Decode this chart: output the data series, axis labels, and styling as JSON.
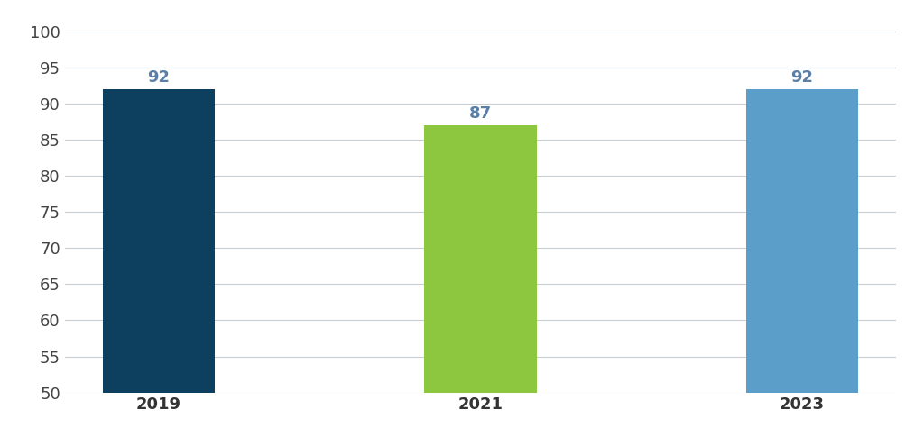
{
  "categories": [
    "2019",
    "2021",
    "2023"
  ],
  "values": [
    92,
    87,
    92
  ],
  "bar_colors": [
    "#0d3f5f",
    "#8dc63f",
    "#5b9ec9"
  ],
  "label_color": "#5b7fa6",
  "ylim": [
    50,
    100
  ],
  "yticks": [
    50,
    55,
    60,
    65,
    70,
    75,
    80,
    85,
    90,
    95,
    100
  ],
  "background_color": "#ffffff",
  "grid_color": "#c8cdd4",
  "tick_label_fontsize": 13,
  "value_label_fontsize": 13,
  "bar_width": 0.35,
  "bar_bottom": 50
}
